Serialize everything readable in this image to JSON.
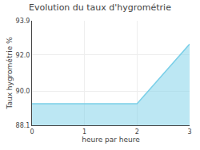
{
  "chart_data": {
    "type": "area",
    "title": "Evolution du taux d'hygrométrie",
    "x_label": "heure par heure",
    "y_label": "Taux hygrométrie %",
    "x": [
      0,
      1,
      2,
      3
    ],
    "series": [
      {
        "name": "Taux hygrométrie %",
        "color": "#7acfe8",
        "values": [
          89.3,
          89.3,
          89.3,
          92.6
        ]
      }
    ],
    "xlim": [
      0,
      3
    ],
    "xticks": [
      0,
      1,
      2,
      3
    ],
    "ylim": [
      88.1,
      93.9
    ],
    "yticks": [
      88.1,
      {
        "value": 90.0,
        "label": "90.0"
      },
      {
        "value": 92.0,
        "label": "92.0"
      },
      93.9
    ],
    "grid": true
  }
}
